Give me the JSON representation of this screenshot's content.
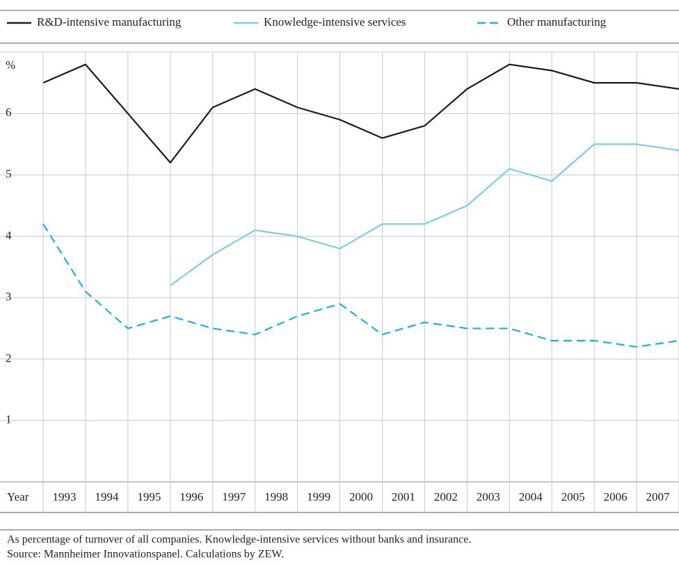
{
  "chart_data": {
    "type": "line",
    "y_label": "%",
    "x_label": "Year",
    "categories": [
      "1993",
      "1994",
      "1995",
      "1996",
      "1997",
      "1998",
      "1999",
      "2000",
      "2001",
      "2002",
      "2003",
      "2004",
      "2005",
      "2006",
      "2007",
      null
    ],
    "series": [
      {
        "name": "R&D-intensive manufacturing",
        "color": "#1a1a1a",
        "dashed": false,
        "values": [
          6.5,
          6.8,
          6.0,
          5.2,
          6.1,
          6.4,
          6.1,
          5.9,
          5.6,
          5.8,
          6.4,
          6.8,
          6.7,
          6.5,
          6.5,
          6.4
        ]
      },
      {
        "name": "Knowledge-intensive services",
        "color": "#7ccbe8",
        "dashed": false,
        "values": [
          null,
          null,
          null,
          3.2,
          3.7,
          4.1,
          4.0,
          3.8,
          4.2,
          4.2,
          4.5,
          5.1,
          4.9,
          5.5,
          5.5,
          5.4
        ]
      },
      {
        "name": "Other manufacturing",
        "color": "#1ab0e0",
        "dashed": true,
        "values": [
          4.2,
          3.1,
          2.5,
          2.7,
          2.5,
          2.4,
          2.7,
          2.9,
          2.4,
          2.6,
          2.5,
          2.5,
          2.3,
          2.3,
          2.2,
          2.3
        ]
      }
    ],
    "ylim": [
      0,
      7
    ],
    "yticks": [
      1,
      2,
      3,
      4,
      5,
      6
    ],
    "grid": true,
    "notes": [
      "As percentage of turnover of all companies. Knowledge-intensive services without banks and insurance.",
      "Source: Mannheimer Innovationspanel. Calculations  by ZEW."
    ]
  }
}
